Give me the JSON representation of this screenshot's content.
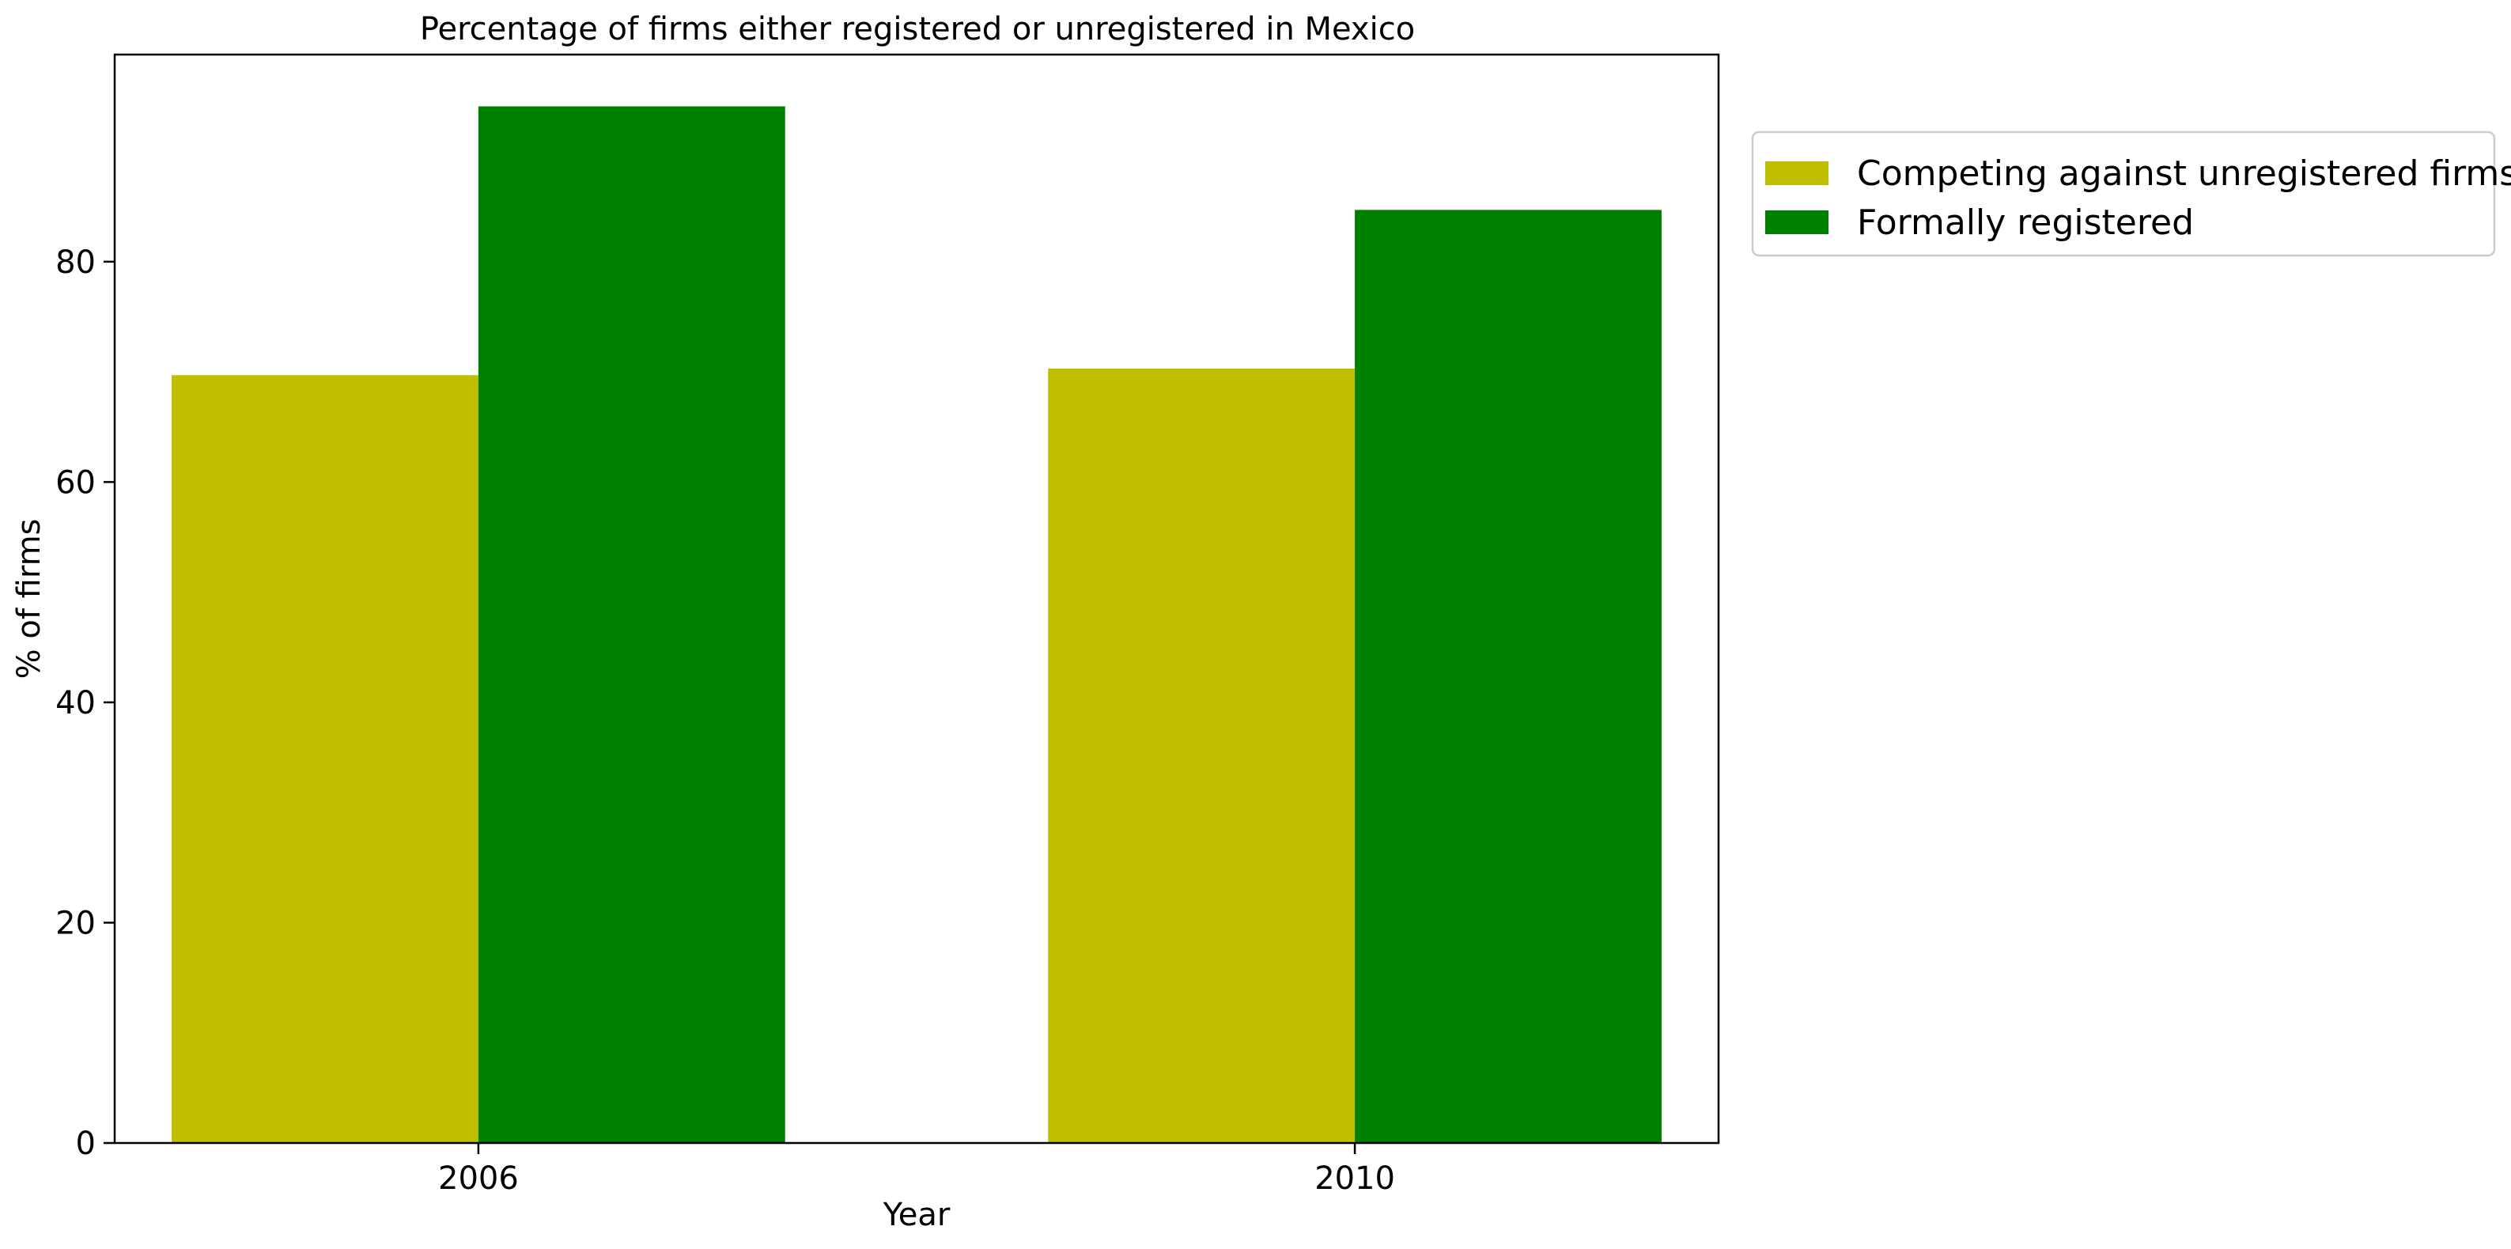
{
  "chart_data": {
    "type": "bar",
    "title": "Percentage of firms either registered or unregistered in Mexico",
    "xlabel": "Year",
    "ylabel": "% of firms",
    "categories": [
      "2006",
      "2010"
    ],
    "series": [
      {
        "name": "Competing against unregistered firms",
        "values": [
          69.7,
          70.3
        ],
        "color": "#bfbf00"
      },
      {
        "name": "Formally registered",
        "values": [
          94.1,
          84.7
        ],
        "color": "#008000"
      }
    ],
    "ylim": [
      0,
      98.8
    ],
    "yticks": [
      0,
      20,
      40,
      60,
      80
    ],
    "grid": false,
    "legend": "outside-top-right"
  }
}
